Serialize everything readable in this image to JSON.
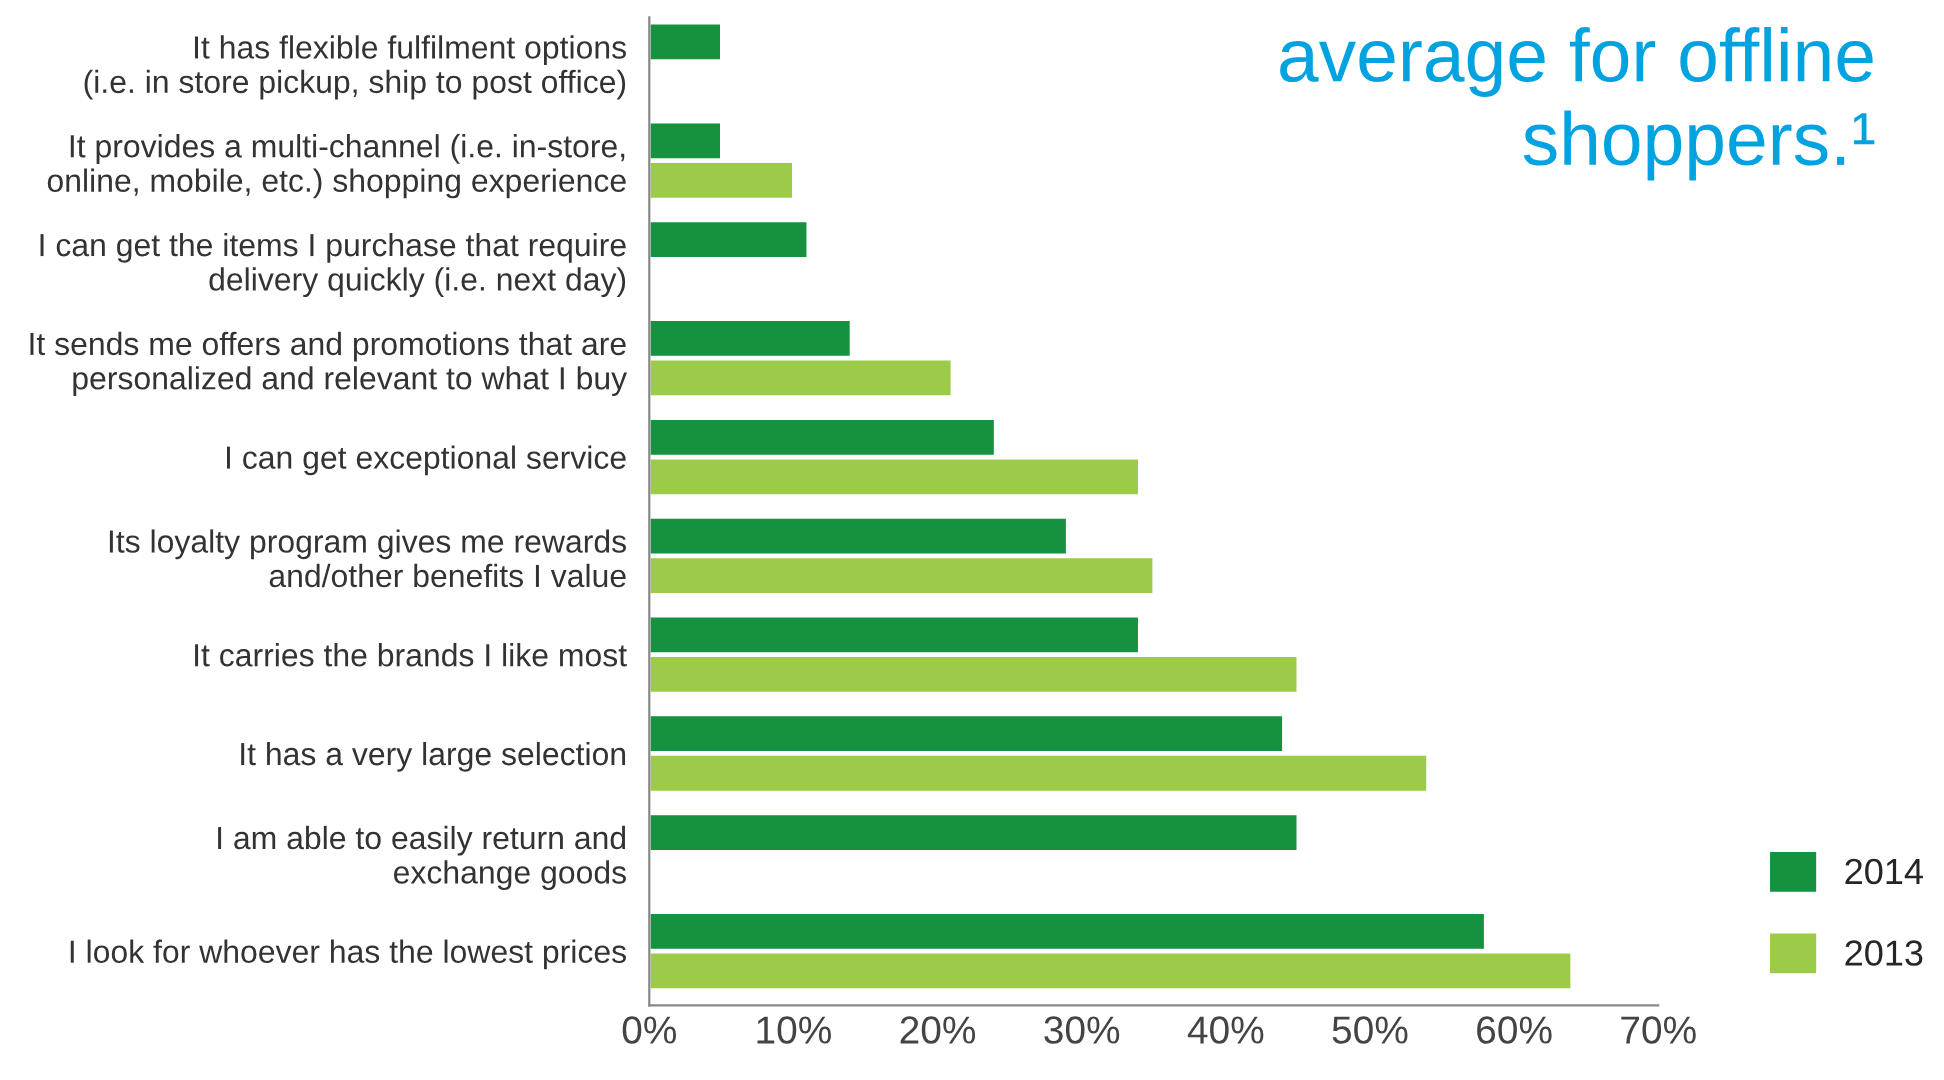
{
  "chart_data": {
    "type": "bar",
    "orientation": "horizontal",
    "categories": [
      "It has flexible fulfilment options\n(i.e. in store pickup, ship to post office)",
      "It provides a multi-channel (i.e. in-store,\nonline, mobile, etc.) shopping experience",
      "I can get the items I purchase that require\ndelivery quickly (i.e. next day)",
      "It sends me offers and promotions that are\npersonalized and relevant to what I buy",
      "I can get exceptional service",
      "Its loyalty program gives me rewards\nand/other benefits I value",
      "It carries the brands I like most",
      "It has a very large selection",
      "I am able to easily return and\nexchange goods",
      "I look for whoever has the lowest prices"
    ],
    "series": [
      {
        "name": "2014",
        "color": "#15913f",
        "values": [
          5,
          5,
          11,
          14,
          24,
          29,
          34,
          44,
          45,
          58
        ]
      },
      {
        "name": "2013",
        "color": "#9ccb4a",
        "values": [
          null,
          10,
          null,
          21,
          34,
          35,
          45,
          54,
          null,
          64
        ]
      }
    ],
    "xlim": [
      0,
      70
    ],
    "xticks": [
      {
        "value": 0,
        "label": "0%"
      },
      {
        "value": 10,
        "label": "10%"
      },
      {
        "value": 20,
        "label": "20%"
      },
      {
        "value": 30,
        "label": "30%"
      },
      {
        "value": 40,
        "label": "40%"
      },
      {
        "value": 50,
        "label": "50%"
      },
      {
        "value": 60,
        "label": "60%"
      },
      {
        "value": 70,
        "label": "70%"
      }
    ],
    "annotations": [
      "average for offline\nshoppers.¹"
    ],
    "grid": false,
    "legend": "bottom right"
  }
}
